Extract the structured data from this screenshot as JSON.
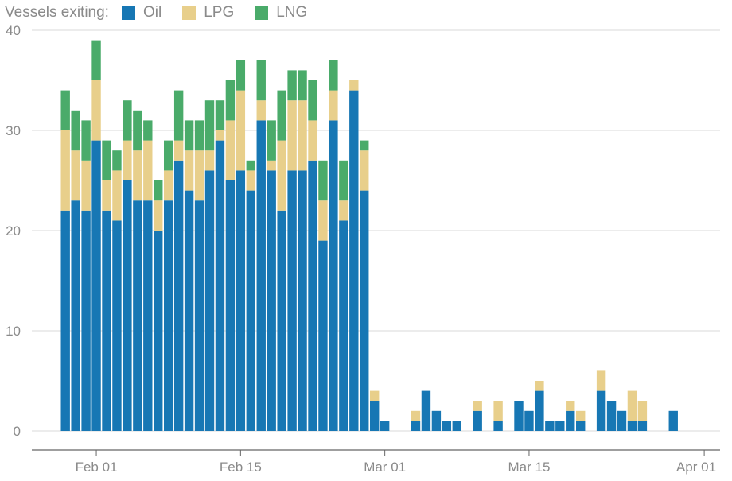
{
  "chart_data": {
    "type": "bar",
    "stacked": true,
    "legend_title": "Vessels exiting:",
    "legend_placement": "top-left",
    "series": [
      {
        "name": "Oil",
        "color": "#1777b4",
        "values": [
          22,
          23,
          22,
          29,
          22,
          21,
          25,
          23,
          23,
          20,
          23,
          27,
          24,
          23,
          26,
          29,
          25,
          26,
          24,
          31,
          26,
          22,
          26,
          26,
          27,
          19,
          31,
          21,
          34,
          24,
          3,
          1,
          0,
          0,
          1,
          4,
          2,
          1,
          1,
          0,
          2,
          0,
          1,
          0,
          3,
          2,
          4,
          1,
          1,
          2,
          1,
          0,
          4,
          3,
          2,
          1,
          1,
          0,
          0,
          2
        ]
      },
      {
        "name": "LPG",
        "color": "#e8cf8b",
        "values": [
          8,
          5,
          5,
          6,
          3,
          5,
          4,
          5,
          6,
          3,
          3,
          2,
          4,
          5,
          2,
          1,
          6,
          8,
          2,
          2,
          1,
          7,
          7,
          7,
          4,
          4,
          3,
          2,
          1,
          4,
          1,
          0,
          0,
          0,
          1,
          0,
          0,
          0,
          0,
          0,
          1,
          0,
          2,
          0,
          0,
          0,
          1,
          0,
          0,
          1,
          1,
          0,
          2,
          0,
          0,
          3,
          2,
          0,
          0,
          0
        ]
      },
      {
        "name": "LNG",
        "color": "#4aab6a",
        "values": [
          4,
          4,
          4,
          4,
          4,
          2,
          4,
          4,
          2,
          2,
          3,
          5,
          3,
          3,
          5,
          3,
          4,
          3,
          1,
          4,
          4,
          5,
          3,
          3,
          4,
          4,
          3,
          4,
          0,
          1,
          0,
          0,
          0,
          0,
          0,
          0,
          0,
          0,
          0,
          0,
          0,
          0,
          0,
          0,
          0,
          0,
          0,
          0,
          0,
          0,
          0,
          0,
          0,
          0,
          0,
          0,
          0,
          0,
          0,
          0
        ]
      }
    ],
    "x_start": "Jan 29",
    "x_ticks": [
      {
        "label": "Feb 01",
        "index": 3
      },
      {
        "label": "Feb 15",
        "index": 17
      },
      {
        "label": "Mar 01",
        "index": 31
      },
      {
        "label": "Mar 15",
        "index": 45
      },
      {
        "label": "Apr 01",
        "index": 62
      }
    ],
    "y_ticks": [
      "0",
      "10",
      "20",
      "30",
      "40"
    ],
    "ylim": [
      0,
      40
    ],
    "grid": "horizontal"
  }
}
